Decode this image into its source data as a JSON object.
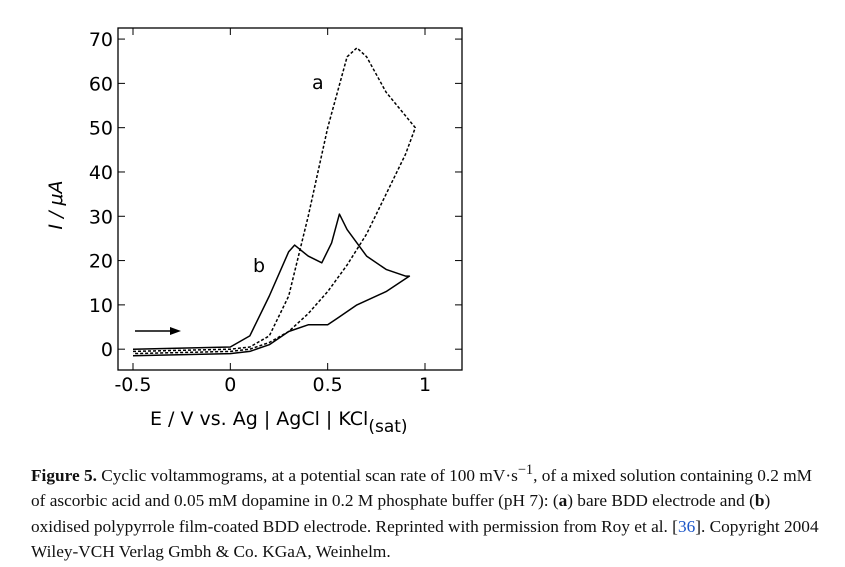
{
  "chart_data": {
    "type": "line",
    "xlabel": "E / V vs. Ag | AgCl | KCl",
    "xlabel_sub": "(sat)",
    "ylabel": "I / μA",
    "xlim": [
      -0.577,
      1.19
    ],
    "ylim": [
      -4.7,
      72.5
    ],
    "xticks": [
      -0.5,
      0,
      0.5,
      1
    ],
    "yticks": [
      0,
      10,
      20,
      30,
      40,
      50,
      60,
      70
    ],
    "series": [
      {
        "name": "a",
        "color": "#000000",
        "dash": true,
        "x": [
          -0.5,
          0,
          0.1,
          0.2,
          0.3,
          0.4,
          0.5,
          0.6,
          0.65,
          0.7,
          0.8,
          0.95,
          0.9,
          0.8,
          0.7,
          0.6,
          0.5,
          0.4,
          0.3,
          0.2,
          0.1,
          0,
          -0.5
        ],
        "values": [
          -0.5,
          0,
          0.5,
          3,
          12,
          30,
          50,
          66,
          68,
          66,
          58,
          50,
          44,
          35,
          26,
          19,
          13,
          8,
          4,
          1.5,
          0,
          -0.5,
          -1
        ]
      },
      {
        "name": "b",
        "color": "#000000",
        "dash": false,
        "x": [
          -0.5,
          0,
          0.1,
          0.2,
          0.3,
          0.33,
          0.4,
          0.47,
          0.52,
          0.56,
          0.6,
          0.7,
          0.8,
          0.9,
          0.92,
          0.8,
          0.65,
          0.55,
          0.5,
          0.4,
          0.3,
          0.2,
          0.1,
          0,
          -0.5
        ],
        "values": [
          0,
          0.5,
          3,
          12,
          22,
          23.5,
          21,
          19.5,
          24,
          30.5,
          27,
          21,
          18,
          16.5,
          16.5,
          13,
          10,
          7,
          5.5,
          5.5,
          4,
          1,
          -0.5,
          -1,
          -1.5
        ]
      }
    ]
  },
  "caption": {
    "segments": [
      "Figure 5.",
      " Cyclic voltammograms, at a potential scan rate of 100 mV·s",
      "−1",
      ", of a mixed solution containing 0.2 mM of ascorbic acid and 0.05 mM dopamine in 0.2 M phosphate buffer (pH 7): (",
      "a",
      ") bare BDD electrode and (",
      "b",
      ") oxidised polypyrrole film-coated BDD electrode. Reprinted with permission from Roy et al. [",
      "36",
      "]. Copyright 2004 Wiley-VCH Verlag Gmbh &amp; Co. KGaA, Weinhelm."
    ]
  }
}
